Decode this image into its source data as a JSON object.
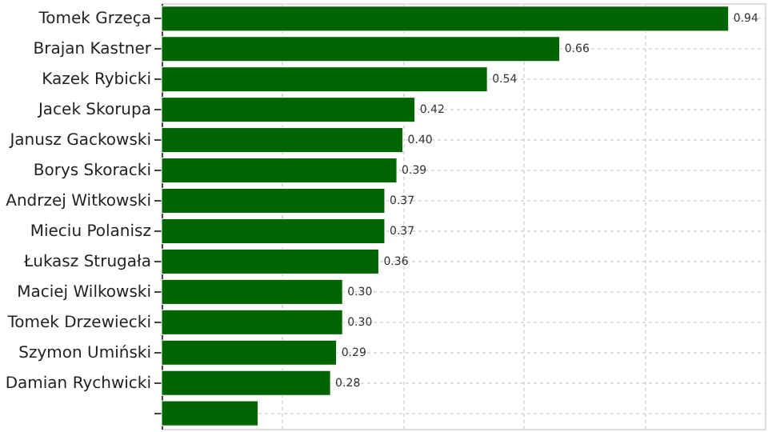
{
  "chart_data": {
    "type": "bar",
    "orientation": "horizontal",
    "categories": [
      "Tomek Grzeça",
      "Brajan Kastner",
      "Kazek Rybicki",
      "Jacek Skorupa",
      "Janusz Gackowski",
      "Borys Skoracki",
      "Andrzej Witkowski",
      "Mieciu Polanisz",
      "Łukasz Strugała",
      "Maciej Wilkowski",
      "Tomek Drzewiecki",
      "Szymon Umiński",
      "Damian Rychwicki",
      null
    ],
    "values": [
      0.94,
      0.66,
      0.54,
      0.42,
      0.4,
      0.39,
      0.37,
      0.37,
      0.36,
      0.3,
      0.3,
      0.29,
      0.28,
      0.16
    ],
    "value_labels": [
      "0.94",
      "0.66",
      "0.54",
      "0.42",
      "0.40",
      "0.39",
      "0.37",
      "0.37",
      "0.36",
      "0.30",
      "0.30",
      "0.29",
      "0.28",
      null
    ],
    "color": "#006400",
    "xlim": [
      0,
      1.0
    ],
    "xticks": [
      {
        "value": 0,
        "label": null
      },
      {
        "value": 0.2,
        "label": null
      },
      {
        "value": 0.4,
        "label": null
      },
      {
        "value": 0.6,
        "label": null
      },
      {
        "value": 0.8,
        "label": null
      },
      {
        "value": 1.0,
        "label": null
      }
    ],
    "tick_labels": "y",
    "grid": true
  }
}
